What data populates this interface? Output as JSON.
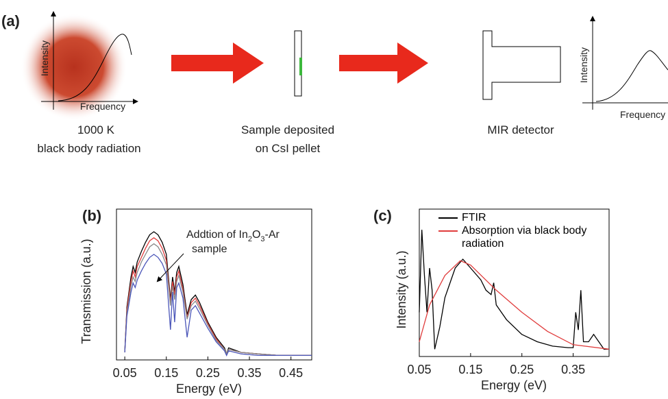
{
  "panel_a": {
    "label": "(a)",
    "source": {
      "y_axis": "Intensity",
      "x_axis": "Frequency",
      "caption": [
        "1000 K",
        "black body radiation"
      ]
    },
    "sample": {
      "caption": [
        "Sample deposited",
        "on CsI pellet"
      ]
    },
    "detector": {
      "caption": [
        "MIR detector"
      ],
      "y_axis": "Intensity",
      "x_axis": "Frequency"
    }
  },
  "chart_data": [
    {
      "type": "line",
      "label": "(b)",
      "xlabel": "Energy (eV)",
      "ylabel": "Transmission (a.u.)",
      "annotation": [
        "Addtion of In",
        "2",
        "O",
        "3",
        "-Ar",
        "sample"
      ],
      "xlim": [
        0.03,
        0.5
      ],
      "ylim": [
        0,
        1
      ],
      "xticks": [
        0.05,
        0.15,
        0.25,
        0.35,
        0.45
      ],
      "x": [
        0.05,
        0.055,
        0.06,
        0.065,
        0.07,
        0.075,
        0.08,
        0.09,
        0.1,
        0.11,
        0.12,
        0.13,
        0.14,
        0.15,
        0.16,
        0.165,
        0.17,
        0.175,
        0.18,
        0.19,
        0.2,
        0.21,
        0.22,
        0.23,
        0.25,
        0.27,
        0.29,
        0.295,
        0.3,
        0.33,
        0.37,
        0.42,
        0.5
      ],
      "series": [
        {
          "color": "#000000",
          "values": [
            0.05,
            0.35,
            0.45,
            0.55,
            0.62,
            0.58,
            0.65,
            0.72,
            0.78,
            0.83,
            0.85,
            0.83,
            0.78,
            0.7,
            0.4,
            0.55,
            0.45,
            0.58,
            0.62,
            0.5,
            0.3,
            0.4,
            0.43,
            0.38,
            0.25,
            0.15,
            0.08,
            0.04,
            0.08,
            0.05,
            0.04,
            0.03,
            0.03
          ]
        },
        {
          "color": "#e03c3c",
          "values": [
            0.05,
            0.33,
            0.43,
            0.52,
            0.59,
            0.55,
            0.62,
            0.68,
            0.74,
            0.79,
            0.81,
            0.79,
            0.74,
            0.66,
            0.38,
            0.52,
            0.43,
            0.55,
            0.59,
            0.47,
            0.28,
            0.38,
            0.41,
            0.36,
            0.24,
            0.14,
            0.07,
            0.04,
            0.07,
            0.05,
            0.04,
            0.03,
            0.03
          ]
        },
        {
          "color": "#888888",
          "values": [
            0.05,
            0.31,
            0.4,
            0.49,
            0.55,
            0.52,
            0.58,
            0.65,
            0.7,
            0.75,
            0.77,
            0.75,
            0.7,
            0.63,
            0.36,
            0.49,
            0.4,
            0.52,
            0.56,
            0.45,
            0.27,
            0.36,
            0.39,
            0.34,
            0.23,
            0.13,
            0.07,
            0.04,
            0.07,
            0.05,
            0.04,
            0.03,
            0.03
          ]
        },
        {
          "color": "#4a55b8",
          "values": [
            0.05,
            0.29,
            0.37,
            0.45,
            0.51,
            0.48,
            0.53,
            0.59,
            0.64,
            0.68,
            0.7,
            0.68,
            0.64,
            0.57,
            0.2,
            0.45,
            0.25,
            0.48,
            0.51,
            0.41,
            0.15,
            0.33,
            0.36,
            0.31,
            0.21,
            0.12,
            0.06,
            0.03,
            0.06,
            0.04,
            0.03,
            0.03,
            0.03
          ]
        }
      ]
    },
    {
      "type": "line",
      "label": "(c)",
      "xlabel": "Energy (eV)",
      "ylabel": "Intensity (a.u.)",
      "xlim": [
        0.05,
        0.42
      ],
      "ylim": [
        0,
        1
      ],
      "xticks": [
        0.05,
        0.15,
        0.25,
        0.35
      ],
      "series": [
        {
          "name": "FTIR",
          "color": "#000000",
          "x": [
            0.05,
            0.055,
            0.06,
            0.065,
            0.07,
            0.075,
            0.08,
            0.09,
            0.1,
            0.12,
            0.135,
            0.15,
            0.17,
            0.18,
            0.19,
            0.195,
            0.2,
            0.22,
            0.25,
            0.28,
            0.31,
            0.34,
            0.35,
            0.355,
            0.36,
            0.365,
            0.37,
            0.38,
            0.39,
            0.4,
            0.41,
            0.42
          ],
          "values": [
            0.3,
            0.86,
            0.55,
            0.3,
            0.6,
            0.45,
            0.05,
            0.2,
            0.4,
            0.6,
            0.66,
            0.6,
            0.52,
            0.45,
            0.42,
            0.5,
            0.35,
            0.25,
            0.15,
            0.1,
            0.07,
            0.06,
            0.06,
            0.3,
            0.18,
            0.45,
            0.1,
            0.1,
            0.15,
            0.1,
            0.05,
            0.05
          ]
        },
        {
          "name": "Absorption via black body radiation",
          "color": "#e03c3c",
          "x": [
            0.05,
            0.07,
            0.1,
            0.13,
            0.15,
            0.2,
            0.25,
            0.3,
            0.35,
            0.42
          ],
          "values": [
            0.1,
            0.35,
            0.55,
            0.65,
            0.62,
            0.45,
            0.3,
            0.17,
            0.08,
            0.05
          ]
        }
      ]
    }
  ]
}
